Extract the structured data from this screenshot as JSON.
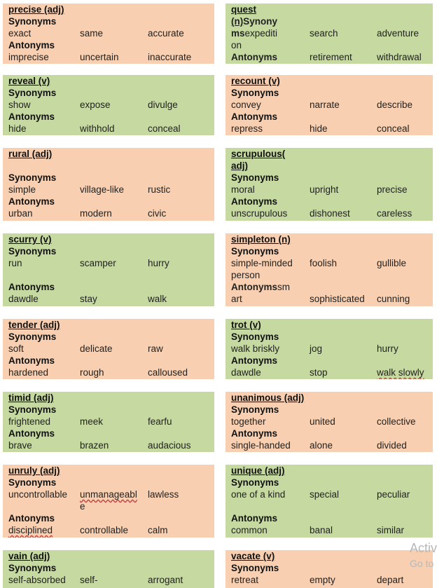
{
  "cards": {
    "precise": {
      "word": "precise (adj)",
      "syn_label": "Synonyms",
      "syn": [
        "exact",
        "same",
        "accurate"
      ],
      "ant_label": "Antonyms",
      "ant": [
        "imprecise",
        "uncertain",
        "inaccurate"
      ]
    },
    "quest": {
      "word_a": "quest",
      "word_b": "(n)",
      "syn_label_a": "Synony",
      "syn_label_b": "ms",
      "syn": [
        "expediti",
        "search",
        "adventure"
      ],
      "syn_cont": "on",
      "ant_label": "Antonyms",
      "ant": [
        "",
        "retirement",
        "withdrawal"
      ]
    },
    "reveal": {
      "word": "reveal (v)",
      "syn_label": "Synonyms",
      "syn": [
        "show",
        "expose",
        "divulge"
      ],
      "ant_label": "Antonyms",
      "ant": [
        "hide",
        "withhold",
        "conceal"
      ]
    },
    "recount": {
      "word": "recount (v)",
      "syn_label": "Synonyms",
      "syn": [
        "convey",
        "narrate",
        "describe"
      ],
      "ant_label": "Antonyms",
      "ant": [
        "repress",
        "hide",
        "conceal"
      ]
    },
    "rural": {
      "word": "rural (adj)",
      "syn_label": "Synonyms",
      "syn": [
        "simple",
        "village-like",
        "rustic"
      ],
      "ant_label": "Antonyms",
      "ant": [
        "urban",
        "modern",
        "civic"
      ]
    },
    "scrupulous": {
      "word_a": "scrupulous(",
      "word_b": "adj)",
      "syn_label": "Synonyms",
      "syn": [
        "moral",
        "upright",
        "precise"
      ],
      "ant_label": "Antonyms",
      "ant": [
        "unscrupulous",
        "dishonest",
        "careless"
      ]
    },
    "scurry": {
      "word": "scurry (v)",
      "syn_label": "Synonyms",
      "syn": [
        "run",
        "scamper",
        "hurry"
      ],
      "ant_label": "Antonyms",
      "ant": [
        "dawdle",
        "stay",
        "walk"
      ]
    },
    "simpleton": {
      "word": "simpleton (n)",
      "syn_label": "Synonyms",
      "syn": [
        "simple-minded",
        "foolish",
        "gullible"
      ],
      "syn_cont": "person",
      "ant_label_a": "Antonyms",
      "ant_label_b": "sm",
      "ant_cont": "art",
      "ant": [
        "",
        "sophisticated",
        "cunning"
      ]
    },
    "tender": {
      "word": "tender (adj)",
      "syn_label": "Synonyms",
      "syn": [
        "soft",
        "delicate",
        "raw"
      ],
      "ant_label": "Antonyms",
      "ant": [
        "hardened",
        "rough",
        "calloused"
      ]
    },
    "trot": {
      "word": "trot (v)",
      "syn_label": "Synonyms",
      "syn": [
        "walk briskly",
        "jog",
        "hurry"
      ],
      "ant_label": "Antonyms",
      "ant": [
        "dawdle",
        "stop",
        "walk slowly"
      ]
    },
    "timid": {
      "word": "timid (adj)",
      "syn_label": "Synonyms",
      "syn": [
        "frightened",
        "meek",
        "fearfu"
      ],
      "ant_label": "Antonyms",
      "ant": [
        "brave",
        "brazen",
        "audacious"
      ]
    },
    "unanimous": {
      "word": "unanimous (adj)",
      "syn_label": "Synonyms",
      "syn": [
        "together",
        "united",
        "collective"
      ],
      "ant_label": "Antonyms",
      "ant": [
        "single-handed",
        "alone",
        "divided"
      ]
    },
    "unruly": {
      "word": "unruly (adj)",
      "syn_label": "Synonyms",
      "syn": [
        "uncontrollable",
        "unmanageabl",
        "lawless"
      ],
      "syn_cont": "e",
      "ant_label": "Antonyms",
      "ant": [
        "disciplined",
        "controllable",
        "calm"
      ]
    },
    "unique": {
      "word": "unique (adj)",
      "syn_label": "Synonyms",
      "syn": [
        "one of a kind",
        "special",
        "peculiar"
      ],
      "ant_label": "Antonyms",
      "ant": [
        "common",
        "banal",
        "similar"
      ]
    },
    "vain": {
      "word": "vain (adj)",
      "syn_label": "Synonyms",
      "syn": [
        "self-absorbed",
        "self-",
        "arrogant"
      ]
    },
    "vacate": {
      "word": "vacate (v)",
      "syn_label": "Synonyms",
      "syn": [
        "retreat",
        "empty",
        "depart"
      ]
    }
  },
  "watermark": {
    "line1": "Activ",
    "line2": "Go to"
  },
  "colors": {
    "peach": "#f8cfb0",
    "green": "#c5d9a0"
  }
}
